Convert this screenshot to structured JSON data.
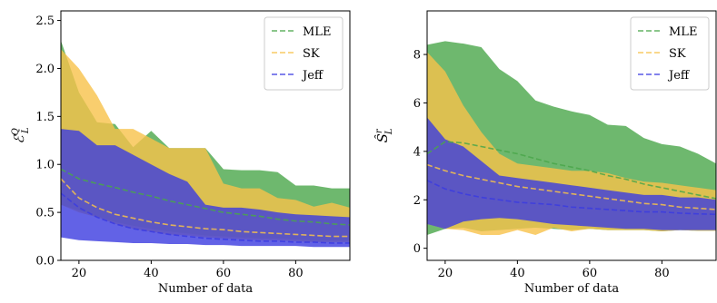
{
  "chart_data": [
    {
      "type": "area",
      "xlabel": "Number of data",
      "ylabel_main": "ℰ",
      "ylabel_sub": "L",
      "ylabel_sup": "Q",
      "xlim": [
        15,
        95
      ],
      "ylim": [
        0,
        2.6
      ],
      "xticks": [
        20,
        40,
        60,
        80
      ],
      "yticks": [
        0.0,
        0.5,
        1.0,
        1.5,
        2.0,
        2.5
      ],
      "ytick_labels": [
        "0.0",
        "0.5",
        "1.0",
        "1.5",
        "2.0",
        "2.5"
      ],
      "legend_position": "top-right",
      "x": [
        15,
        20,
        25,
        30,
        35,
        40,
        45,
        50,
        55,
        60,
        65,
        70,
        75,
        80,
        85,
        90,
        95
      ],
      "series": [
        {
          "name": "MLE",
          "color": "#4aa64a",
          "upper": [
            2.29,
            1.75,
            1.44,
            1.42,
            1.18,
            1.35,
            1.17,
            1.17,
            1.17,
            0.95,
            0.94,
            0.94,
            0.92,
            0.78,
            0.78,
            0.75,
            0.75
          ],
          "lower": [
            0.58,
            0.52,
            0.46,
            0.4,
            0.36,
            0.33,
            0.3,
            0.28,
            0.26,
            0.25,
            0.24,
            0.23,
            0.23,
            0.22,
            0.21,
            0.21,
            0.21
          ],
          "mean": [
            0.95,
            0.85,
            0.8,
            0.76,
            0.71,
            0.67,
            0.62,
            0.58,
            0.54,
            0.5,
            0.48,
            0.46,
            0.43,
            0.41,
            0.4,
            0.38,
            0.37
          ]
        },
        {
          "name": "SK",
          "color": "#f7c24a",
          "upper": [
            2.2,
            2.0,
            1.72,
            1.37,
            1.37,
            1.27,
            1.17,
            1.17,
            1.17,
            0.8,
            0.75,
            0.75,
            0.65,
            0.63,
            0.56,
            0.6,
            0.55
          ],
          "lower": [
            0.58,
            0.5,
            0.45,
            0.38,
            0.33,
            0.3,
            0.27,
            0.26,
            0.24,
            0.23,
            0.22,
            0.21,
            0.21,
            0.2,
            0.19,
            0.19,
            0.19
          ],
          "mean": [
            0.85,
            0.65,
            0.55,
            0.48,
            0.44,
            0.4,
            0.37,
            0.35,
            0.33,
            0.32,
            0.3,
            0.29,
            0.28,
            0.27,
            0.26,
            0.25,
            0.25
          ]
        },
        {
          "name": "Jeff",
          "color": "#3b3be0",
          "upper": [
            1.37,
            1.35,
            1.2,
            1.2,
            1.1,
            1.0,
            0.9,
            0.82,
            0.58,
            0.55,
            0.55,
            0.53,
            0.5,
            0.48,
            0.47,
            0.46,
            0.45
          ],
          "lower": [
            0.24,
            0.21,
            0.2,
            0.19,
            0.18,
            0.18,
            0.17,
            0.17,
            0.16,
            0.16,
            0.15,
            0.15,
            0.15,
            0.15,
            0.14,
            0.14,
            0.14
          ],
          "mean": [
            0.7,
            0.55,
            0.45,
            0.38,
            0.33,
            0.3,
            0.27,
            0.25,
            0.23,
            0.22,
            0.21,
            0.2,
            0.2,
            0.19,
            0.19,
            0.18,
            0.18
          ]
        }
      ]
    },
    {
      "type": "area",
      "xlabel": "Number of data",
      "ylabel_main": "Ŝ",
      "ylabel_sub": "L",
      "ylabel_sup": "r",
      "xlim": [
        15,
        95
      ],
      "ylim": [
        -0.5,
        9.8
      ],
      "xticks": [
        20,
        40,
        60,
        80
      ],
      "yticks": [
        0,
        2,
        4,
        6,
        8
      ],
      "ytick_labels": [
        "0",
        "2",
        "4",
        "6",
        "8"
      ],
      "legend_position": "top-right",
      "x": [
        15,
        20,
        25,
        30,
        35,
        40,
        45,
        50,
        55,
        60,
        65,
        70,
        75,
        80,
        85,
        90,
        95
      ],
      "series": [
        {
          "name": "MLE",
          "color": "#4aa64a",
          "upper": [
            8.4,
            8.55,
            8.45,
            8.3,
            7.4,
            6.9,
            6.1,
            5.85,
            5.65,
            5.5,
            5.1,
            5.05,
            4.55,
            4.3,
            4.2,
            3.9,
            3.5
          ],
          "lower": [
            0.55,
            0.8,
            0.85,
            0.7,
            0.75,
            0.8,
            0.85,
            0.8,
            0.75,
            0.8,
            0.75,
            0.75,
            0.75,
            0.7,
            0.75,
            0.72,
            0.72
          ],
          "mean": [
            3.9,
            4.4,
            4.35,
            4.2,
            4.05,
            3.9,
            3.7,
            3.5,
            3.35,
            3.2,
            3.0,
            2.85,
            2.65,
            2.5,
            2.35,
            2.2,
            2.05
          ]
        },
        {
          "name": "SK",
          "color": "#f7c24a",
          "upper": [
            8.1,
            7.3,
            5.9,
            4.8,
            3.9,
            3.5,
            3.4,
            3.3,
            3.2,
            3.2,
            3.1,
            2.9,
            2.75,
            2.7,
            2.6,
            2.5,
            2.4
          ],
          "lower": [
            1.0,
            0.8,
            0.75,
            0.55,
            0.55,
            0.75,
            0.55,
            0.85,
            0.7,
            0.8,
            0.75,
            0.75,
            0.75,
            0.7,
            0.75,
            0.72,
            0.72
          ],
          "mean": [
            3.45,
            3.2,
            3.0,
            2.85,
            2.7,
            2.55,
            2.45,
            2.35,
            2.25,
            2.15,
            2.05,
            1.95,
            1.85,
            1.8,
            1.7,
            1.65,
            1.6
          ]
        },
        {
          "name": "Jeff",
          "color": "#3b3be0",
          "upper": [
            5.4,
            4.5,
            4.2,
            3.6,
            3.0,
            2.9,
            2.8,
            2.7,
            2.6,
            2.5,
            2.4,
            2.3,
            2.2,
            2.2,
            2.1,
            2.1,
            2.0
          ],
          "lower": [
            1.0,
            0.8,
            1.1,
            1.2,
            1.25,
            1.2,
            1.1,
            1.0,
            0.95,
            0.9,
            0.85,
            0.8,
            0.8,
            0.75,
            0.75,
            0.75,
            0.75
          ],
          "mean": [
            2.8,
            2.45,
            2.25,
            2.1,
            2.0,
            1.9,
            1.85,
            1.8,
            1.7,
            1.65,
            1.6,
            1.55,
            1.5,
            1.5,
            1.45,
            1.42,
            1.4
          ]
        }
      ]
    }
  ]
}
